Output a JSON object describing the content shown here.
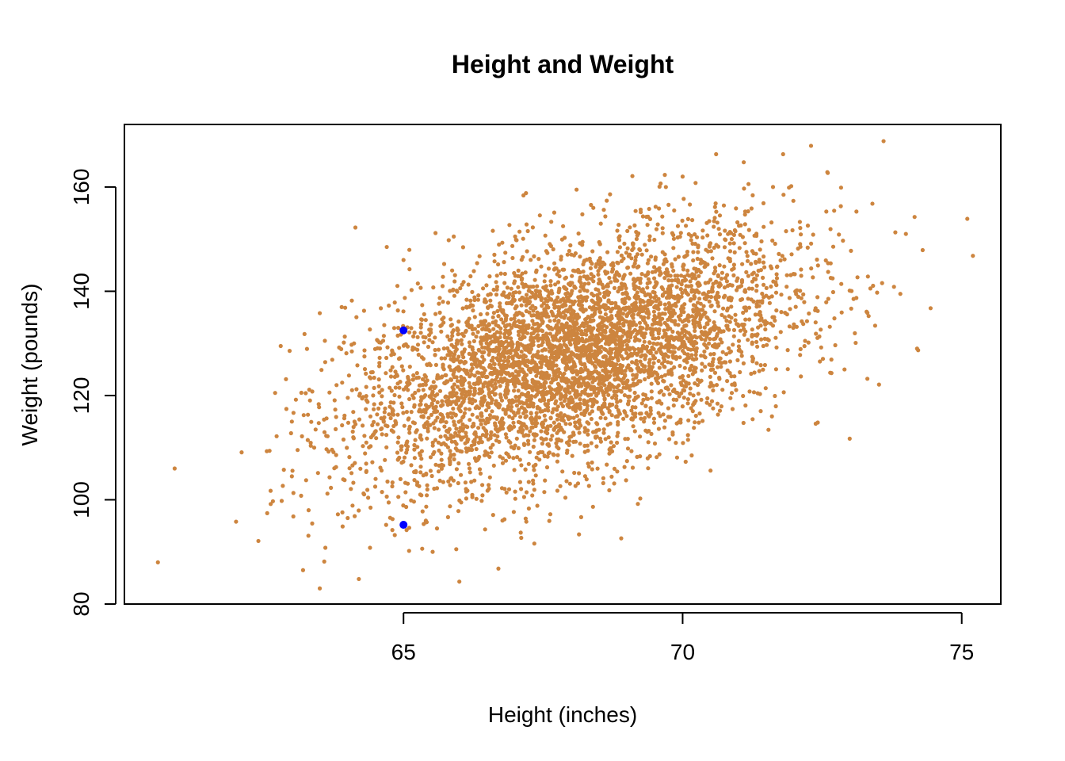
{
  "chart_data": {
    "type": "scatter",
    "title": "Height and Weight",
    "xlabel": "Height (inches)",
    "ylabel": "Weight (pounds)",
    "xlim": [
      60.0,
      75.7
    ],
    "ylim": [
      80,
      172
    ],
    "x_ticks": [
      65,
      70,
      75
    ],
    "y_ticks": [
      80,
      100,
      120,
      140,
      160
    ],
    "x_tick_labels": [
      "65",
      "70",
      "75"
    ],
    "y_tick_labels": [
      "80",
      "100",
      "120",
      "140",
      "160"
    ],
    "grid": false,
    "legend": "none",
    "series": [
      {
        "color": "#CD853F",
        "points": [
          [
            60.6,
            88
          ],
          [
            60.9,
            106
          ],
          [
            62.0,
            95.8
          ],
          [
            62.1,
            109.1
          ],
          [
            62.4,
            92.1
          ],
          [
            62.6,
            109.4
          ],
          [
            62.7,
            120.5
          ],
          [
            62.8,
            129.5
          ],
          [
            63.0,
            104.5
          ],
          [
            63.0,
            115.0
          ],
          [
            63.2,
            86.5
          ],
          [
            63.3,
            98.0
          ],
          [
            63.4,
            110.0
          ],
          [
            63.5,
            83.0
          ],
          [
            63.5,
            135.8
          ],
          [
            63.6,
            90.8
          ],
          [
            63.7,
            102.3
          ],
          [
            63.8,
            122.0
          ],
          [
            64.0,
            96.5
          ],
          [
            64.1,
            112.0
          ],
          [
            64.2,
            84.8
          ],
          [
            64.3,
            127.5
          ],
          [
            64.4,
            90.8
          ],
          [
            64.5,
            104.0
          ],
          [
            64.6,
            118.5
          ],
          [
            64.7,
            148.5
          ],
          [
            64.8,
            94.2
          ],
          [
            64.9,
            111.0
          ],
          [
            65.0,
            146.0
          ],
          [
            65.1,
            90.2
          ],
          [
            65.2,
            129.0
          ],
          [
            65.3,
            101.0
          ],
          [
            65.4,
            96.0
          ],
          [
            65.6,
            94.5
          ],
          [
            65.7,
            141.0
          ],
          [
            65.8,
            113.0
          ],
          [
            65.9,
            150.5
          ],
          [
            66.0,
            84.3
          ],
          [
            66.2,
            138.2
          ],
          [
            66.4,
            99.8
          ],
          [
            66.6,
            151.6
          ],
          [
            66.7,
            86.8
          ],
          [
            66.8,
            145.6
          ],
          [
            67.1,
            93.7
          ],
          [
            67.2,
            95.8
          ],
          [
            67.4,
            140.0
          ],
          [
            67.7,
            155.1
          ],
          [
            67.9,
            100.4
          ],
          [
            68.1,
            159.5
          ],
          [
            68.4,
            156.0
          ],
          [
            68.7,
            158.6
          ],
          [
            68.9,
            92.6
          ],
          [
            69.1,
            162.1
          ],
          [
            69.4,
            155.8
          ],
          [
            69.7,
            160.0
          ],
          [
            69.9,
            108.1
          ],
          [
            70.0,
            162.0
          ],
          [
            70.5,
            105.6
          ],
          [
            70.6,
            166.3
          ],
          [
            71.1,
            159.7
          ],
          [
            71.6,
            116.0
          ],
          [
            71.8,
            166.3
          ],
          [
            72.1,
            153.3
          ],
          [
            72.3,
            167.9
          ],
          [
            72.6,
            162.7
          ],
          [
            72.9,
            125.0
          ],
          [
            73.1,
            130.1
          ],
          [
            73.4,
            156.8
          ],
          [
            73.6,
            168.8
          ],
          [
            73.9,
            139.5
          ],
          [
            74.0,
            151.0
          ],
          [
            74.2,
            129.0
          ],
          [
            74.3,
            147.9
          ],
          [
            75.1,
            153.9
          ],
          [
            75.2,
            146.8
          ]
        ]
      },
      {
        "color": "#0000FF",
        "points": [
          [
            65.0,
            132.5
          ],
          [
            65.0,
            95.2
          ]
        ]
      }
    ],
    "cluster": {
      "count": 4800,
      "center": [
        68.0,
        127.5
      ],
      "sd": [
        1.95,
        11.8
      ],
      "correlation": 0.5
    }
  }
}
